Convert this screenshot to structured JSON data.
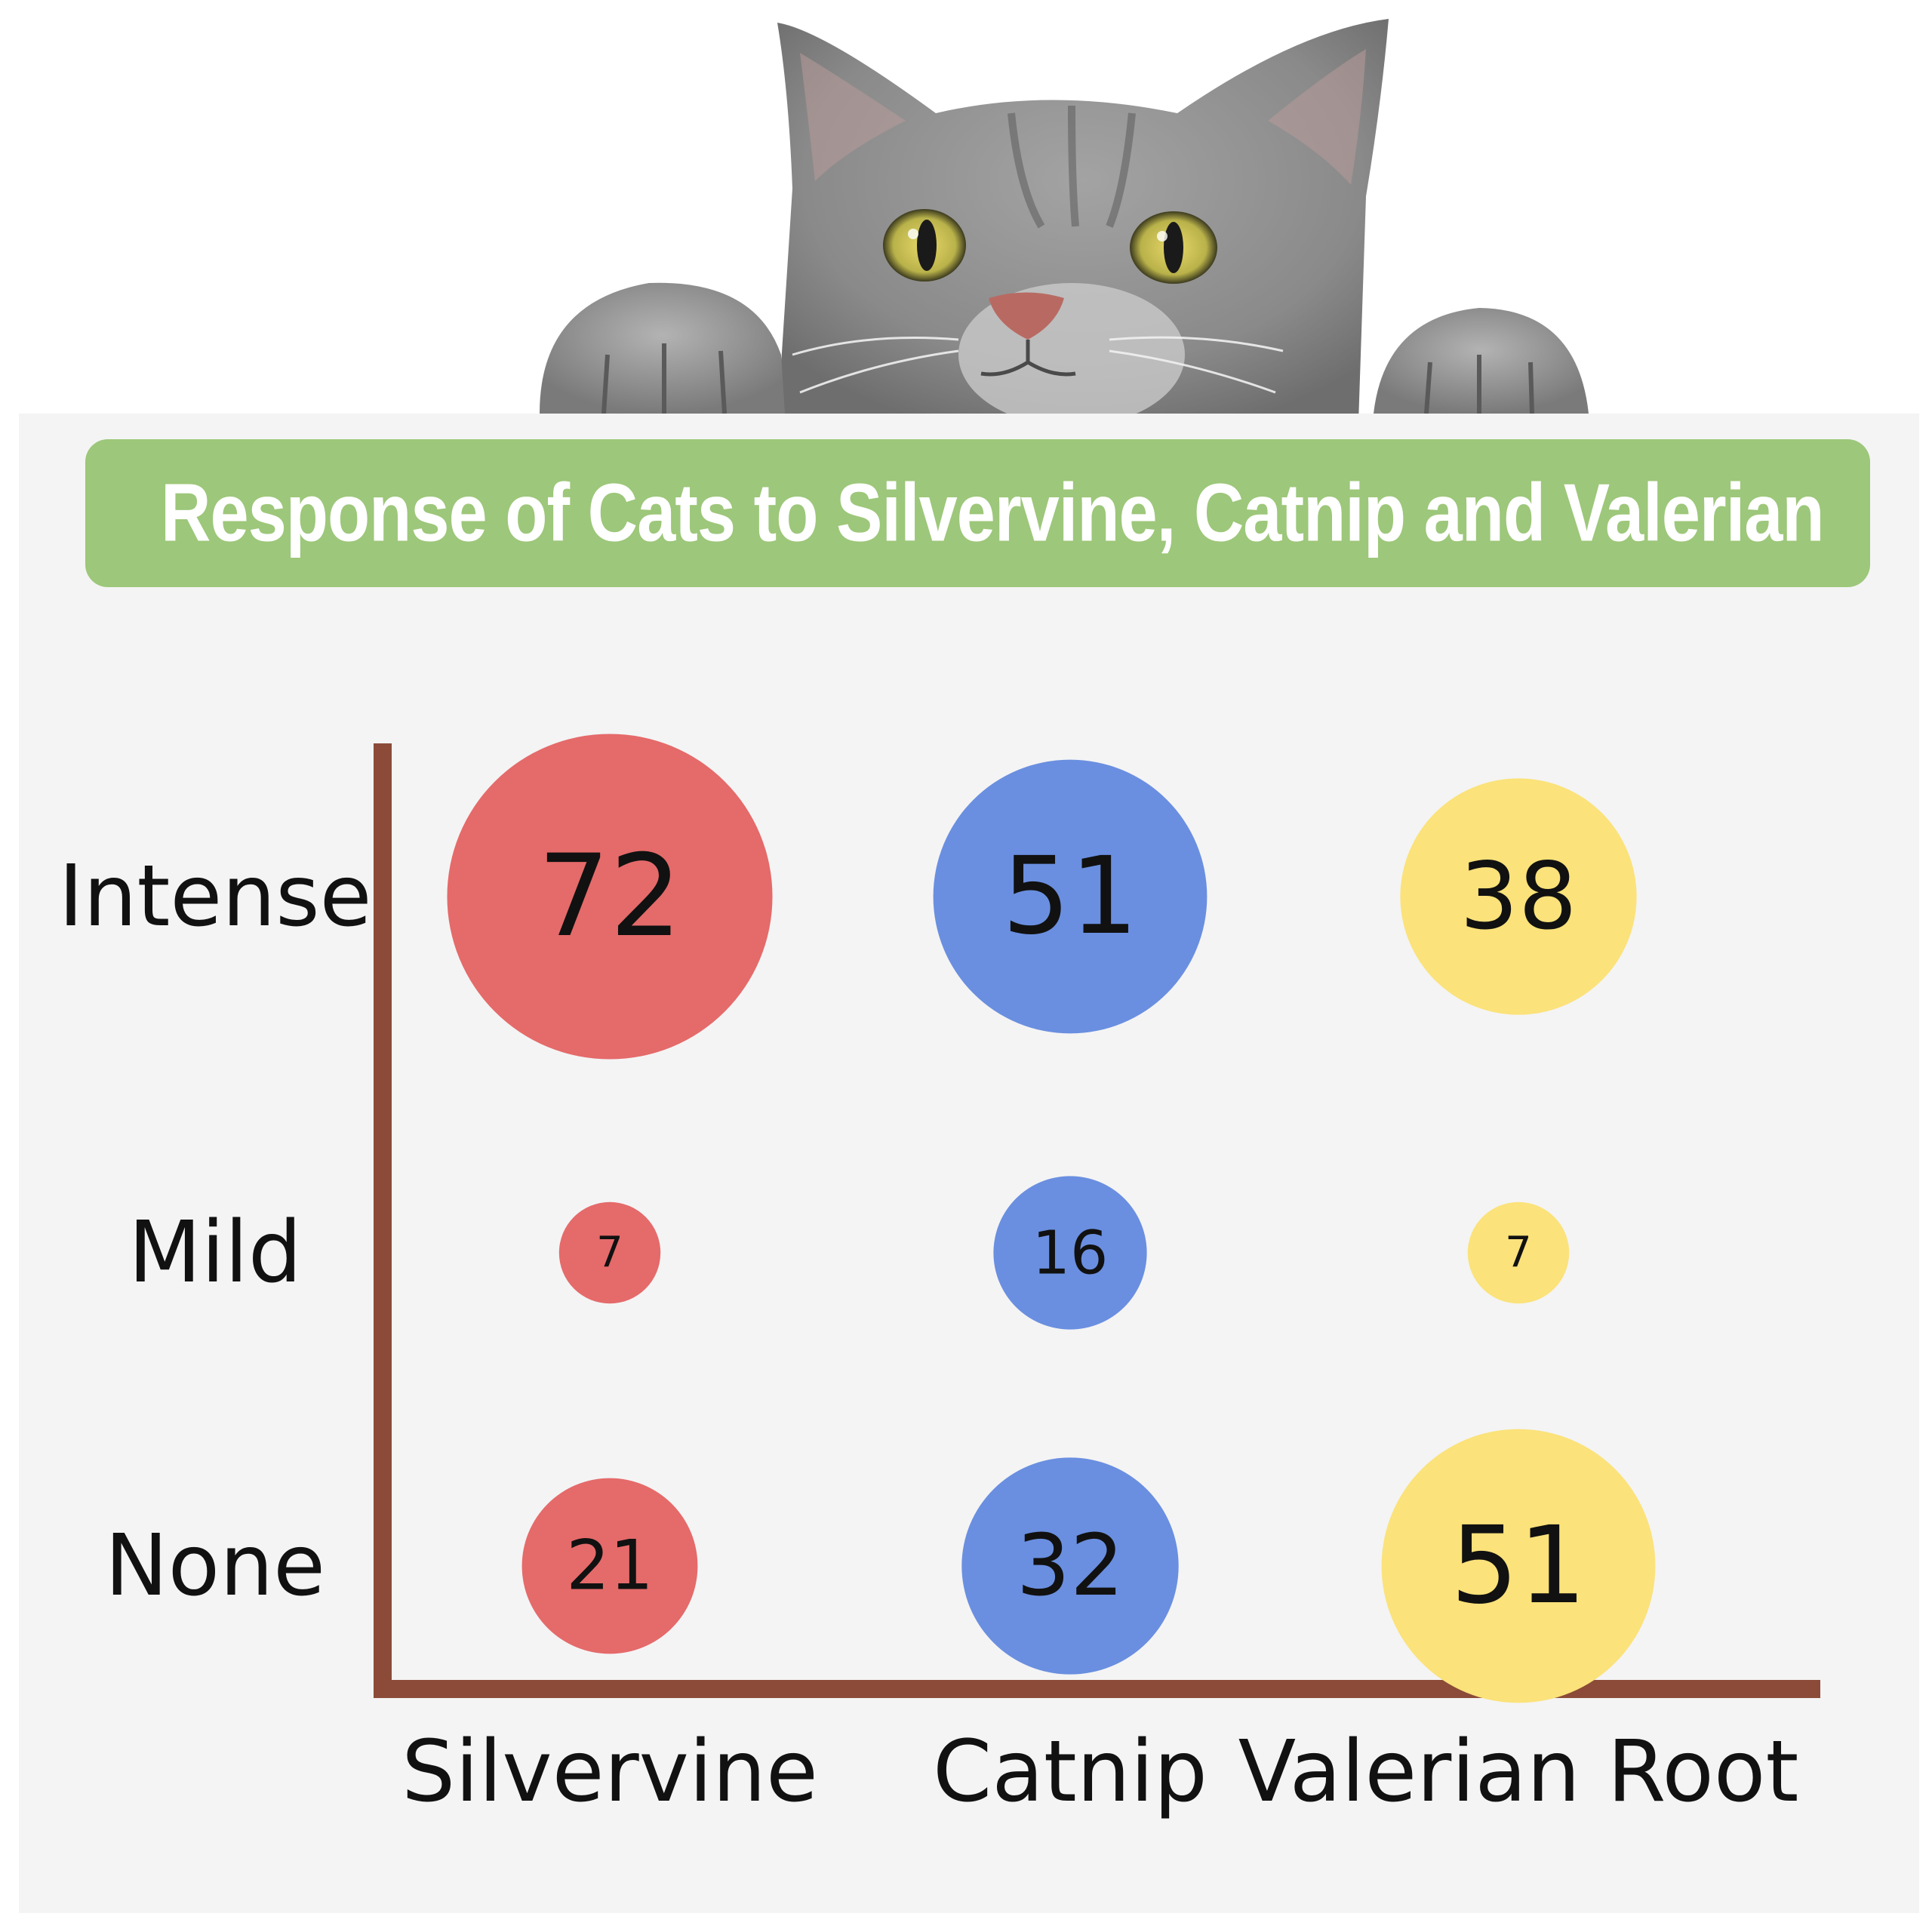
{
  "title": "Response of Cats to Silvervine, Catnip and Valerian",
  "colors": {
    "banner": "#9dc77a",
    "axis": "#8b4b38",
    "Silvervine": "#e56a6a",
    "Catnip": "#6a8fe0",
    "Valerian Root": "#fbe27a"
  },
  "chart_data": {
    "type": "bubble",
    "title": "Response of Cats to Silvervine, Catnip and Valerian",
    "x_categories": [
      "Silvervine",
      "Catnip",
      "Valerian Root"
    ],
    "y_categories": [
      "Intense",
      "Mild",
      "None"
    ],
    "points": [
      {
        "x": "Silvervine",
        "y": "Intense",
        "value": 72
      },
      {
        "x": "Catnip",
        "y": "Intense",
        "value": 51
      },
      {
        "x": "Valerian Root",
        "y": "Intense",
        "value": 38
      },
      {
        "x": "Silvervine",
        "y": "Mild",
        "value": 7
      },
      {
        "x": "Catnip",
        "y": "Mild",
        "value": 16
      },
      {
        "x": "Valerian Root",
        "y": "Mild",
        "value": 7
      },
      {
        "x": "Silvervine",
        "y": "None",
        "value": 21
      },
      {
        "x": "Catnip",
        "y": "None",
        "value": 32
      },
      {
        "x": "Valerian Root",
        "y": "None",
        "value": 51
      }
    ]
  }
}
